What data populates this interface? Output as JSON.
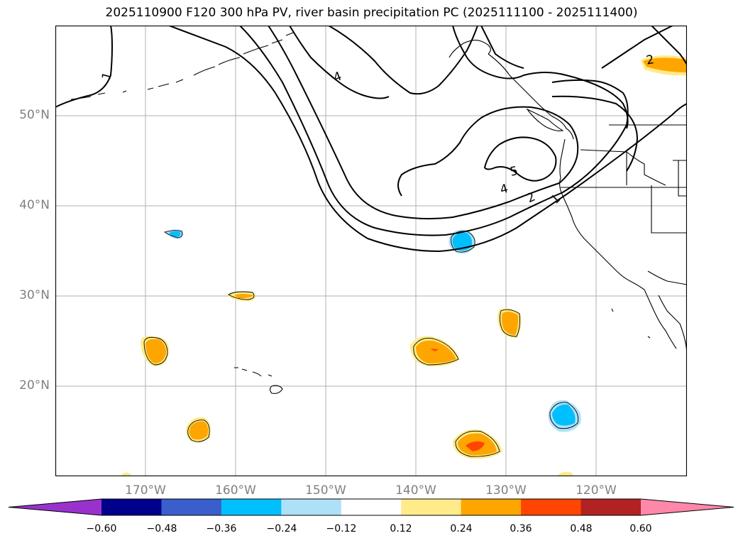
{
  "title": "2025110900 F120 300 hPa PV, river basin precipitation PC (2025111100 - 2025111400)",
  "lat_labels": [
    "50°N",
    "40°N",
    "30°N",
    "20°N"
  ],
  "lon_labels": [
    "170°W",
    "160°W",
    "150°W",
    "140°W",
    "130°W",
    "120°W"
  ],
  "contour_labels": [
    "1",
    "4",
    "5",
    "4",
    "2",
    "1",
    "2"
  ],
  "colorbar": {
    "ticks": [
      "−0.60",
      "−0.48",
      "−0.36",
      "−0.24",
      "−0.12",
      "0.12",
      "0.24",
      "0.36",
      "0.48",
      "0.60"
    ],
    "colors": [
      "#9932cc",
      "#00008b",
      "#3a5fcd",
      "#00bfff",
      "#aee1f7",
      "#ffffff",
      "#ffeb8a",
      "#ffa500",
      "#ff4500",
      "#b22222",
      "#ff88aa"
    ]
  },
  "chart_data": {
    "type": "map",
    "projection": "PlateCarree",
    "extent": {
      "lon": [
        -180,
        -110
      ],
      "lat": [
        10,
        60
      ]
    },
    "field_contours": "300 hPa PV (PVU)",
    "contour_levels": [
      1,
      2,
      4,
      5
    ],
    "shaded_field": "river basin precipitation PC",
    "shading_levels": [
      -0.6,
      -0.48,
      -0.36,
      -0.24,
      -0.12,
      0.12,
      0.24,
      0.36,
      0.48,
      0.6
    ]
  }
}
